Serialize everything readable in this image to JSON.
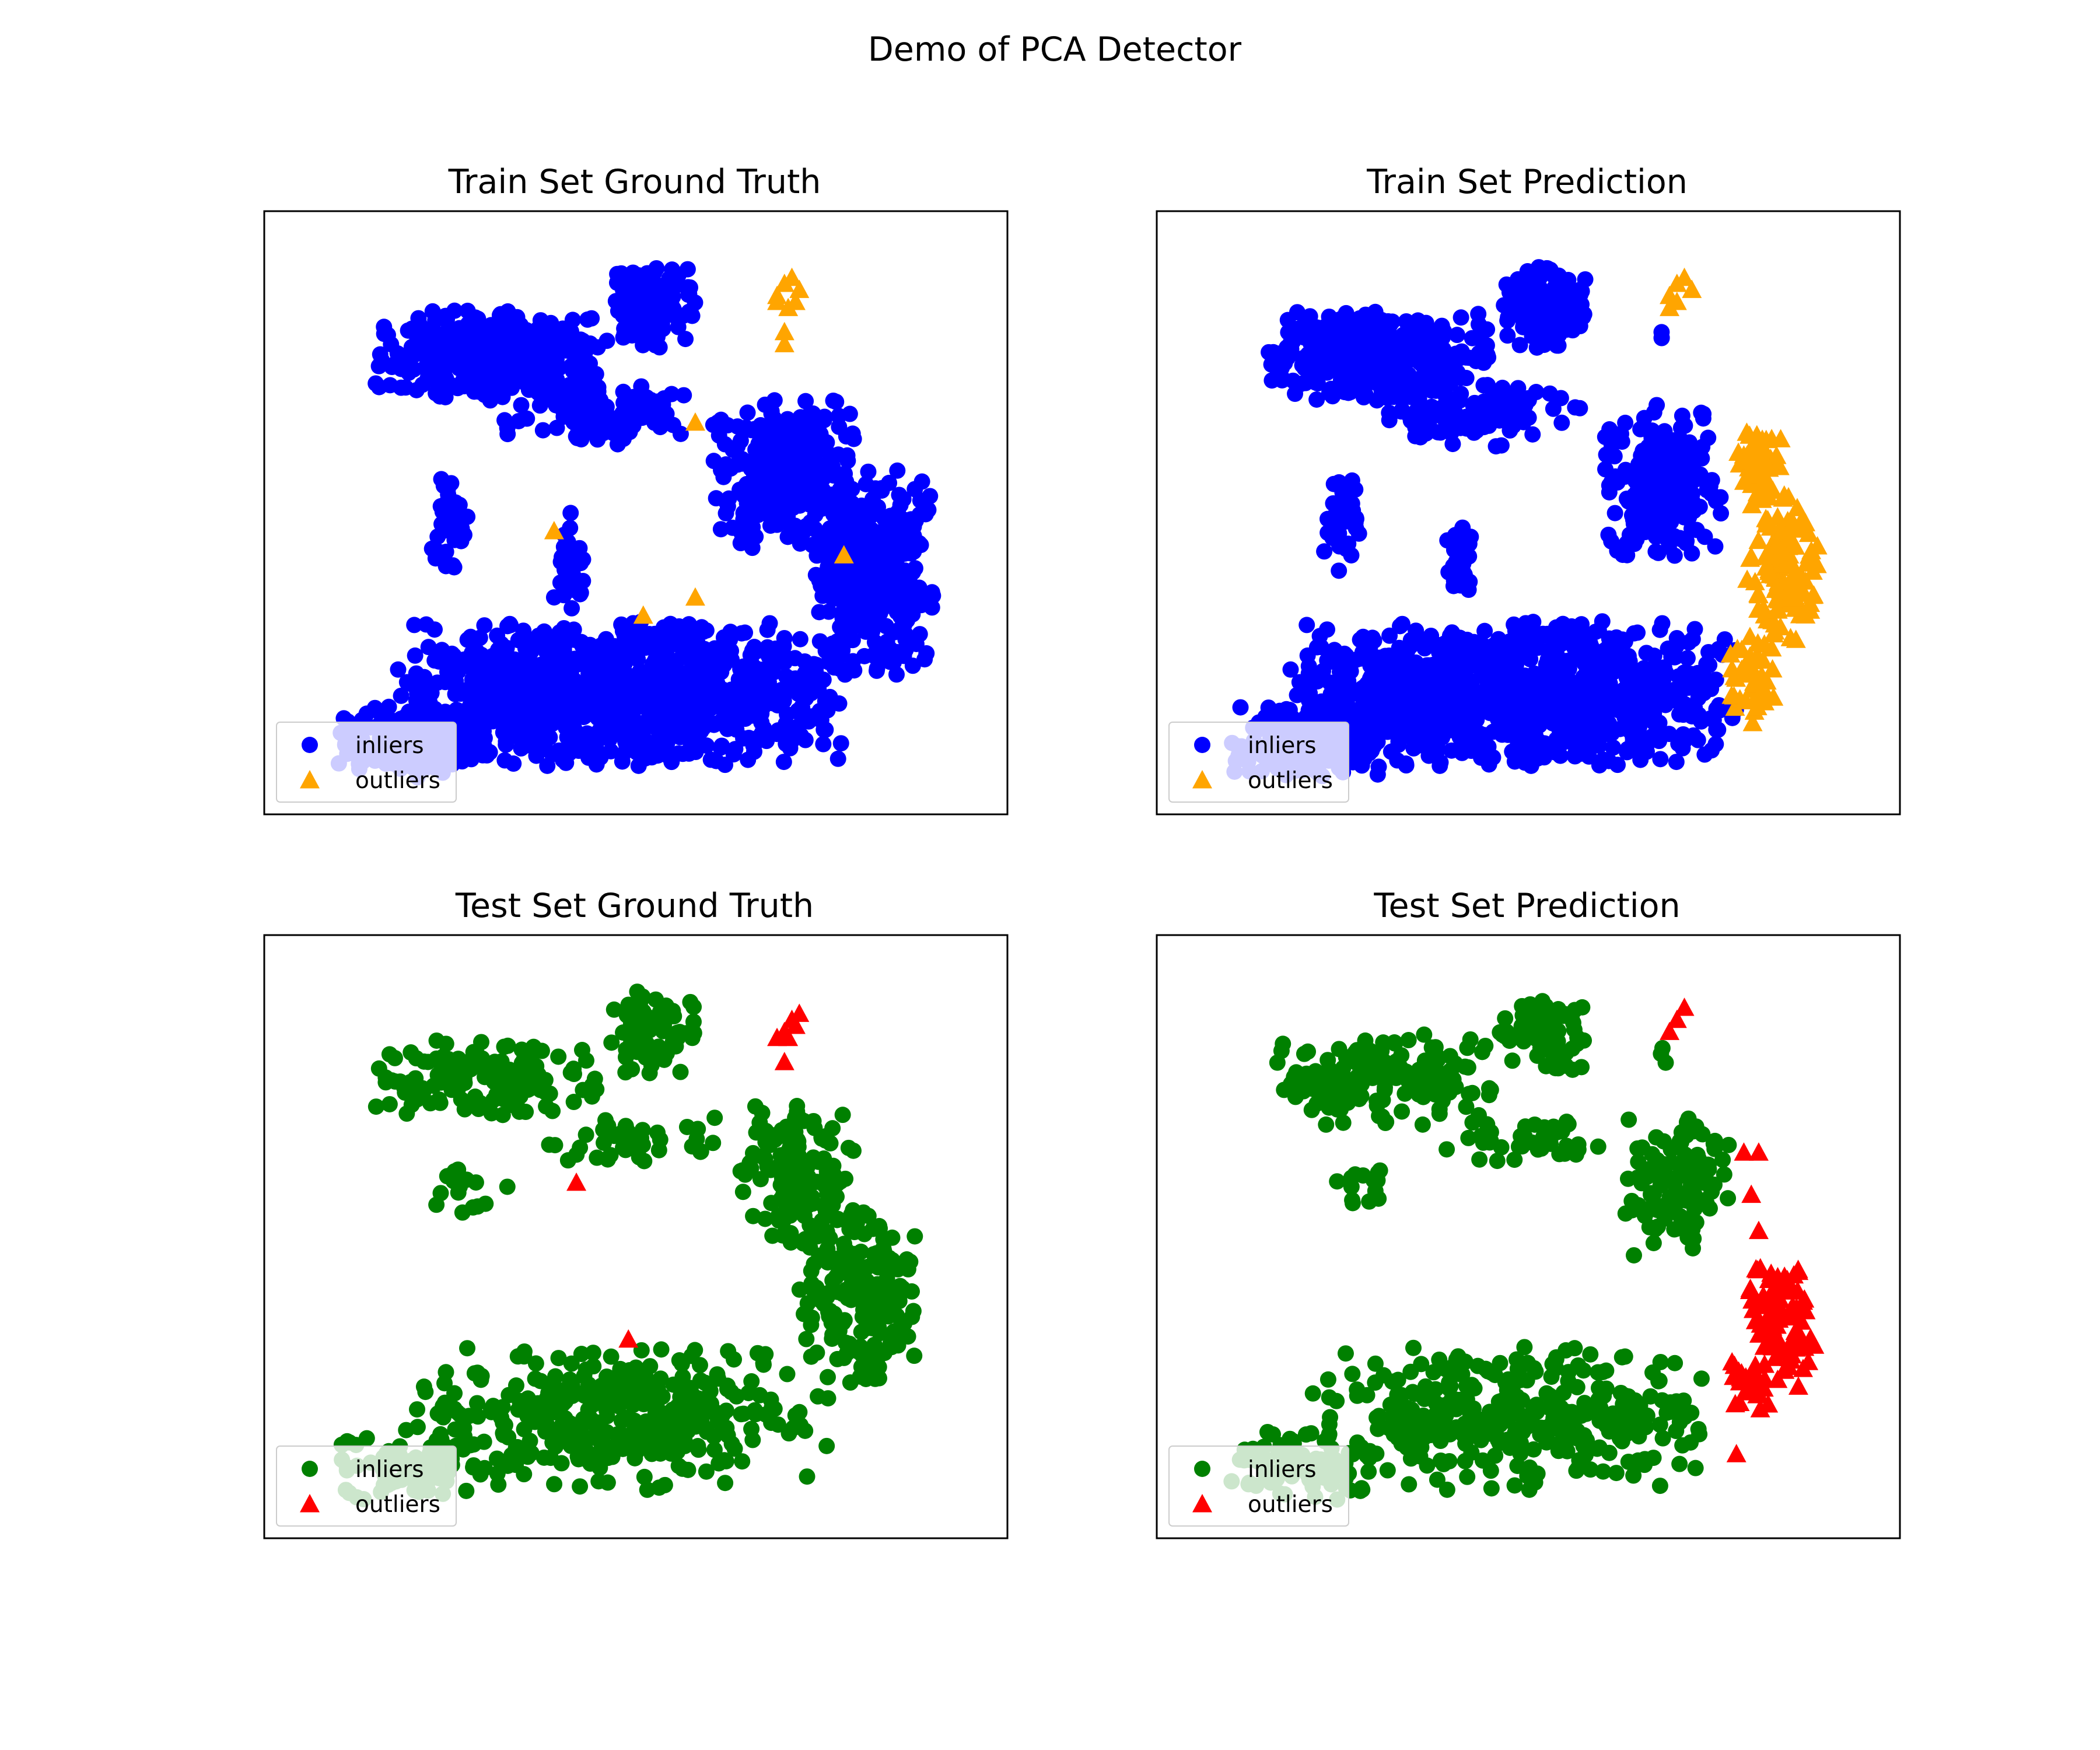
{
  "figure": {
    "title": "Demo of PCA Detector"
  },
  "chart_data": [
    {
      "type": "scatter",
      "title": "Train Set Ground Truth",
      "xlabel": "",
      "ylabel": "",
      "axes_ticks": false,
      "legend": {
        "placement": "lower-left",
        "entries": [
          "inliers",
          "outliers"
        ]
      },
      "series": [
        {
          "name": "inliers",
          "marker": "circle",
          "color": "#0000ff",
          "regions": [
            {
              "x": 0.3,
              "y": 0.76,
              "rx": 0.15,
              "ry": 0.075,
              "n": 380
            },
            {
              "x": 0.52,
              "y": 0.84,
              "rx": 0.06,
              "ry": 0.07,
              "n": 140
            },
            {
              "x": 0.44,
              "y": 0.66,
              "rx": 0.13,
              "ry": 0.05,
              "n": 110
            },
            {
              "x": 0.25,
              "y": 0.48,
              "rx": 0.025,
              "ry": 0.08,
              "n": 40
            },
            {
              "x": 0.41,
              "y": 0.42,
              "rx": 0.02,
              "ry": 0.08,
              "n": 35
            },
            {
              "x": 0.7,
              "y": 0.57,
              "rx": 0.1,
              "ry": 0.13,
              "n": 330
            },
            {
              "x": 0.82,
              "y": 0.4,
              "rx": 0.08,
              "ry": 0.17,
              "n": 320
            },
            {
              "x": 0.48,
              "y": 0.2,
              "rx": 0.3,
              "ry": 0.12,
              "n": 1100
            },
            {
              "x": 0.2,
              "y": 0.12,
              "rx": 0.1,
              "ry": 0.06,
              "n": 230
            }
          ]
        },
        {
          "name": "outliers",
          "marker": "triangle",
          "color": "#ffa500",
          "points": [
            [
              0.69,
              0.86
            ],
            [
              0.7,
              0.88
            ],
            [
              0.71,
              0.89
            ],
            [
              0.72,
              0.87
            ],
            [
              0.705,
              0.84
            ],
            [
              0.69,
              0.85
            ],
            [
              0.715,
              0.85
            ],
            [
              0.7,
              0.78
            ],
            [
              0.7,
              0.8
            ],
            [
              0.58,
              0.65
            ],
            [
              0.39,
              0.47
            ],
            [
              0.78,
              0.43
            ],
            [
              0.58,
              0.36
            ],
            [
              0.51,
              0.33
            ]
          ]
        }
      ]
    },
    {
      "type": "scatter",
      "title": "Train Set Prediction",
      "xlabel": "",
      "ylabel": "",
      "axes_ticks": false,
      "legend": {
        "placement": "lower-left",
        "entries": [
          "inliers",
          "outliers"
        ]
      },
      "series": [
        {
          "name": "inliers",
          "marker": "circle",
          "color": "#0000ff",
          "regions": [
            {
              "x": 0.3,
              "y": 0.76,
              "rx": 0.15,
              "ry": 0.075,
              "n": 380
            },
            {
              "x": 0.52,
              "y": 0.84,
              "rx": 0.06,
              "ry": 0.07,
              "n": 140
            },
            {
              "x": 0.44,
              "y": 0.66,
              "rx": 0.13,
              "ry": 0.05,
              "n": 110
            },
            {
              "x": 0.25,
              "y": 0.48,
              "rx": 0.025,
              "ry": 0.08,
              "n": 40
            },
            {
              "x": 0.41,
              "y": 0.42,
              "rx": 0.02,
              "ry": 0.08,
              "n": 35
            },
            {
              "x": 0.68,
              "y": 0.55,
              "rx": 0.08,
              "ry": 0.13,
              "n": 260
            },
            {
              "x": 0.48,
              "y": 0.2,
              "rx": 0.3,
              "ry": 0.12,
              "n": 1050
            },
            {
              "x": 0.2,
              "y": 0.12,
              "rx": 0.1,
              "ry": 0.06,
              "n": 230
            },
            {
              "x": 0.68,
              "y": 0.8,
              "rx": 0.006,
              "ry": 0.02,
              "n": 3
            }
          ]
        },
        {
          "name": "outliers",
          "marker": "triangle",
          "color": "#ffa500",
          "points": [
            [
              0.69,
              0.86
            ],
            [
              0.7,
              0.88
            ],
            [
              0.71,
              0.89
            ],
            [
              0.72,
              0.87
            ],
            [
              0.7,
              0.85
            ],
            [
              0.69,
              0.84
            ]
          ],
          "regions": [
            {
              "x": 0.81,
              "y": 0.58,
              "rx": 0.03,
              "ry": 0.08,
              "n": 45
            },
            {
              "x": 0.84,
              "y": 0.4,
              "rx": 0.05,
              "ry": 0.13,
              "n": 120
            },
            {
              "x": 0.8,
              "y": 0.22,
              "rx": 0.03,
              "ry": 0.07,
              "n": 40
            }
          ]
        }
      ]
    },
    {
      "type": "scatter",
      "title": "Test Set Ground Truth",
      "xlabel": "",
      "ylabel": "",
      "axes_ticks": false,
      "legend": {
        "placement": "lower-left",
        "entries": [
          "inliers",
          "outliers"
        ]
      },
      "series": [
        {
          "name": "inliers",
          "marker": "circle",
          "color": "#008000",
          "regions": [
            {
              "x": 0.3,
              "y": 0.76,
              "rx": 0.15,
              "ry": 0.075,
              "n": 150
            },
            {
              "x": 0.52,
              "y": 0.84,
              "rx": 0.06,
              "ry": 0.07,
              "n": 70
            },
            {
              "x": 0.5,
              "y": 0.66,
              "rx": 0.12,
              "ry": 0.04,
              "n": 40
            },
            {
              "x": 0.28,
              "y": 0.58,
              "rx": 0.05,
              "ry": 0.05,
              "n": 15
            },
            {
              "x": 0.72,
              "y": 0.6,
              "rx": 0.08,
              "ry": 0.12,
              "n": 140
            },
            {
              "x": 0.8,
              "y": 0.4,
              "rx": 0.08,
              "ry": 0.15,
              "n": 190
            },
            {
              "x": 0.48,
              "y": 0.2,
              "rx": 0.28,
              "ry": 0.12,
              "n": 380
            },
            {
              "x": 0.2,
              "y": 0.12,
              "rx": 0.1,
              "ry": 0.06,
              "n": 80
            }
          ]
        },
        {
          "name": "outliers",
          "marker": "triangle",
          "color": "#ff0000",
          "points": [
            [
              0.7,
              0.84
            ],
            [
              0.71,
              0.86
            ],
            [
              0.72,
              0.87
            ],
            [
              0.705,
              0.83
            ],
            [
              0.715,
              0.85
            ],
            [
              0.69,
              0.83
            ],
            [
              0.7,
              0.79
            ],
            [
              0.42,
              0.59
            ],
            [
              0.49,
              0.33
            ]
          ]
        }
      ]
    },
    {
      "type": "scatter",
      "title": "Test Set Prediction",
      "xlabel": "",
      "ylabel": "",
      "axes_ticks": false,
      "legend": {
        "placement": "lower-left",
        "entries": [
          "inliers",
          "outliers"
        ]
      },
      "series": [
        {
          "name": "inliers",
          "marker": "circle",
          "color": "#008000",
          "regions": [
            {
              "x": 0.3,
              "y": 0.76,
              "rx": 0.15,
              "ry": 0.075,
              "n": 150
            },
            {
              "x": 0.52,
              "y": 0.84,
              "rx": 0.06,
              "ry": 0.07,
              "n": 70
            },
            {
              "x": 0.5,
              "y": 0.66,
              "rx": 0.12,
              "ry": 0.04,
              "n": 40
            },
            {
              "x": 0.28,
              "y": 0.58,
              "rx": 0.05,
              "ry": 0.05,
              "n": 15
            },
            {
              "x": 0.7,
              "y": 0.58,
              "rx": 0.07,
              "ry": 0.12,
              "n": 110
            },
            {
              "x": 0.48,
              "y": 0.2,
              "rx": 0.27,
              "ry": 0.12,
              "n": 360
            },
            {
              "x": 0.2,
              "y": 0.12,
              "rx": 0.1,
              "ry": 0.06,
              "n": 80
            },
            {
              "x": 0.68,
              "y": 0.8,
              "rx": 0.006,
              "ry": 0.02,
              "n": 3
            }
          ]
        },
        {
          "name": "outliers",
          "marker": "triangle",
          "color": "#ff0000",
          "points": [
            [
              0.7,
              0.86
            ],
            [
              0.71,
              0.88
            ],
            [
              0.69,
              0.84
            ],
            [
              0.79,
              0.64
            ],
            [
              0.81,
              0.64
            ],
            [
              0.8,
              0.57
            ],
            [
              0.81,
              0.51
            ],
            [
              0.78,
              0.14
            ]
          ],
          "regions": [
            {
              "x": 0.84,
              "y": 0.36,
              "rx": 0.05,
              "ry": 0.11,
              "n": 90
            },
            {
              "x": 0.8,
              "y": 0.26,
              "rx": 0.03,
              "ry": 0.05,
              "n": 25
            }
          ]
        }
      ]
    }
  ]
}
